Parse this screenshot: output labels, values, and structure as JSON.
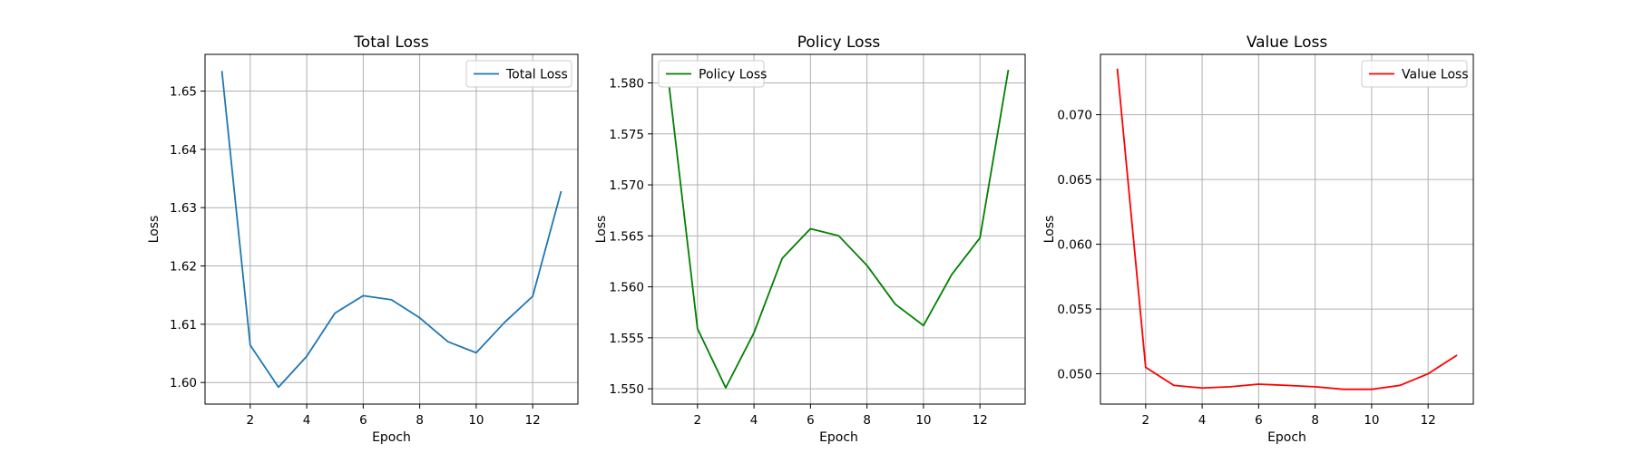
{
  "chart_data": [
    {
      "type": "line",
      "title": "Total Loss",
      "xlabel": "Epoch",
      "ylabel": "Loss",
      "x": [
        1,
        2,
        3,
        4,
        5,
        6,
        7,
        8,
        9,
        10,
        11,
        12,
        13
      ],
      "series": [
        {
          "name": "Total Loss",
          "color": "#1f77b4",
          "values": [
            1.6533,
            1.6064,
            1.5992,
            1.6045,
            1.6119,
            1.6149,
            1.6142,
            1.6111,
            1.607,
            1.6051,
            1.6103,
            1.6148,
            1.6327
          ]
        }
      ],
      "xlim": [
        0.4,
        13.6
      ],
      "ylim": [
        1.5963,
        1.6563
      ],
      "xticks": [
        2,
        4,
        6,
        8,
        10,
        12
      ],
      "xtick_labels": [
        "2",
        "4",
        "6",
        "8",
        "10",
        "12"
      ],
      "yticks": [
        1.6,
        1.61,
        1.62,
        1.63,
        1.64,
        1.65
      ],
      "ytick_labels": [
        "1.60",
        "1.61",
        "1.62",
        "1.63",
        "1.64",
        "1.65"
      ],
      "grid": true,
      "legend_position": "upper right"
    },
    {
      "type": "line",
      "title": "Policy Loss",
      "xlabel": "Epoch",
      "ylabel": "Loss",
      "x": [
        1,
        2,
        3,
        4,
        5,
        6,
        7,
        8,
        9,
        10,
        11,
        12,
        13
      ],
      "series": [
        {
          "name": "Policy Loss",
          "color": "#008000",
          "values": [
            1.5796,
            1.5559,
            1.5501,
            1.5555,
            1.5628,
            1.5657,
            1.565,
            1.5621,
            1.5583,
            1.5562,
            1.5612,
            1.5648,
            1.5812
          ]
        }
      ],
      "xlim": [
        0.4,
        13.6
      ],
      "ylim": [
        1.5485,
        1.5828
      ],
      "xticks": [
        2,
        4,
        6,
        8,
        10,
        12
      ],
      "xtick_labels": [
        "2",
        "4",
        "6",
        "8",
        "10",
        "12"
      ],
      "yticks": [
        1.55,
        1.555,
        1.56,
        1.565,
        1.57,
        1.575,
        1.58
      ],
      "ytick_labels": [
        "1.550",
        "1.555",
        "1.560",
        "1.565",
        "1.570",
        "1.575",
        "1.580"
      ],
      "grid": true,
      "legend_position": "upper left"
    },
    {
      "type": "line",
      "title": "Value Loss",
      "xlabel": "Epoch",
      "ylabel": "Loss",
      "x": [
        1,
        2,
        3,
        4,
        5,
        6,
        7,
        8,
        9,
        10,
        11,
        12,
        13
      ],
      "series": [
        {
          "name": "Value Loss",
          "color": "#ff0000",
          "values": [
            0.0735,
            0.0505,
            0.0491,
            0.0489,
            0.049,
            0.0492,
            0.0491,
            0.049,
            0.0488,
            0.0488,
            0.0491,
            0.05,
            0.0514
          ]
        }
      ],
      "xlim": [
        0.4,
        13.6
      ],
      "ylim": [
        0.04766,
        0.07466
      ],
      "xticks": [
        2,
        4,
        6,
        8,
        10,
        12
      ],
      "xtick_labels": [
        "2",
        "4",
        "6",
        "8",
        "10",
        "12"
      ],
      "yticks": [
        0.05,
        0.055,
        0.06,
        0.065,
        0.07
      ],
      "ytick_labels": [
        "0.050",
        "0.055",
        "0.060",
        "0.065",
        "0.070"
      ],
      "grid": true,
      "legend_position": "upper right"
    }
  ]
}
